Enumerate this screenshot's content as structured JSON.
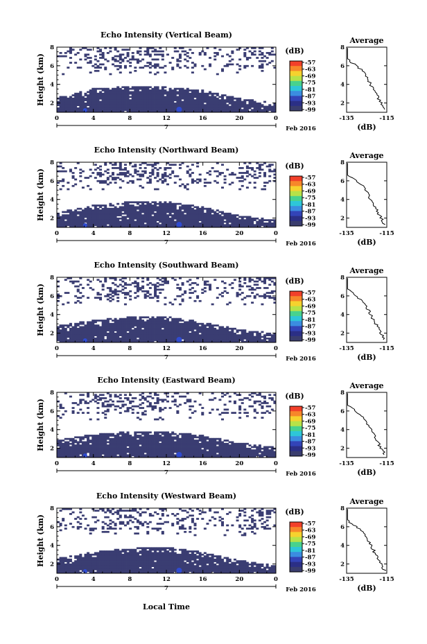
{
  "figure": {
    "xlabel": "Local Time",
    "date_label": "Feb 2016",
    "day_label": "7",
    "colorbar_unit": "(dB)",
    "average_title": "Average",
    "average_xlabel": "(dB)"
  },
  "colorbar": {
    "labels": [
      "-57",
      "-63",
      "-69",
      "-75",
      "-81",
      "-87",
      "-93",
      "-99"
    ],
    "colors": [
      "#f2402a",
      "#f7872a",
      "#f6d22e",
      "#b7e248",
      "#48d28e",
      "#2ec6d8",
      "#3b8de0",
      "#3344b8",
      "#2b2f86",
      "#3a3d6e"
    ]
  },
  "chart_data": [
    {
      "type": "heatmap",
      "title": "Echo Intensity (Vertical Beam)",
      "ylabel": "Height (km)",
      "xlim": [
        0,
        24
      ],
      "ylim": [
        1,
        8
      ],
      "xticks": [
        "0",
        "4",
        "8",
        "12",
        "16",
        "20",
        "0"
      ],
      "yticks": [
        "2",
        "4",
        "6",
        "8"
      ],
      "dense_layer_top_km": [
        2.6,
        3.6,
        3.8,
        3.8,
        3.4,
        2.5,
        2.0
      ],
      "average": {
        "xticks": [
          "-135",
          "-115"
        ],
        "yticks": [
          "2",
          "4",
          "6",
          "8"
        ],
        "xlim": [
          -135,
          -115
        ],
        "ylim": [
          1,
          8
        ]
      }
    },
    {
      "type": "heatmap",
      "title": "Echo Intensity (Northward Beam)",
      "ylabel": "Height (km)",
      "xlim": [
        0,
        24
      ],
      "ylim": [
        1,
        8
      ],
      "xticks": [
        "0",
        "4",
        "8",
        "12",
        "16",
        "20",
        "0"
      ],
      "yticks": [
        "2",
        "4",
        "6",
        "8"
      ],
      "dense_layer_top_km": [
        2.6,
        3.4,
        3.8,
        3.8,
        3.2,
        2.3,
        1.8
      ],
      "average": {
        "xticks": [
          "-135",
          "-115"
        ],
        "yticks": [
          "2",
          "4",
          "6",
          "8"
        ],
        "xlim": [
          -135,
          -115
        ],
        "ylim": [
          1,
          8
        ]
      }
    },
    {
      "type": "heatmap",
      "title": "Echo Intensity (Southward Beam)",
      "ylabel": "Height (km)",
      "xlim": [
        0,
        24
      ],
      "ylim": [
        1,
        8
      ],
      "xticks": [
        "0",
        "4",
        "8",
        "12",
        "16",
        "20",
        "0"
      ],
      "yticks": [
        "2",
        "4",
        "6",
        "8"
      ],
      "dense_layer_top_km": [
        2.8,
        3.4,
        3.8,
        3.8,
        3.2,
        2.4,
        2.0
      ],
      "average": {
        "xticks": [
          "-135",
          "-115"
        ],
        "yticks": [
          "2",
          "4",
          "6",
          "8"
        ],
        "xlim": [
          -135,
          -115
        ],
        "ylim": [
          1,
          8
        ]
      }
    },
    {
      "type": "heatmap",
      "title": "Echo Intensity (Eastward Beam)",
      "ylabel": "Height (km)",
      "xlim": [
        0,
        24
      ],
      "ylim": [
        1,
        8
      ],
      "xticks": [
        "0",
        "4",
        "8",
        "12",
        "16",
        "20",
        "0"
      ],
      "yticks": [
        "2",
        "4",
        "6",
        "8"
      ],
      "dense_layer_top_km": [
        2.9,
        3.5,
        3.8,
        3.8,
        3.4,
        2.6,
        2.1
      ],
      "average": {
        "xticks": [
          "-135",
          "-115"
        ],
        "yticks": [
          "2",
          "4",
          "6",
          "8"
        ],
        "xlim": [
          -135,
          -115
        ],
        "ylim": [
          1,
          8
        ]
      }
    },
    {
      "type": "heatmap",
      "title": "Echo Intensity (Westward Beam)",
      "ylabel": "Height (km)",
      "xlim": [
        0,
        24
      ],
      "ylim": [
        1,
        8
      ],
      "xticks": [
        "0",
        "4",
        "8",
        "12",
        "16",
        "20",
        "0"
      ],
      "yticks": [
        "2",
        "4",
        "6",
        "8"
      ],
      "dense_layer_top_km": [
        2.6,
        3.3,
        3.7,
        3.8,
        3.3,
        2.4,
        1.9
      ],
      "average": {
        "xticks": [
          "-135",
          "-115"
        ],
        "yticks": [
          "2",
          "4",
          "6",
          "8"
        ],
        "xlim": [
          -135,
          -115
        ],
        "ylim": [
          1,
          8
        ]
      }
    }
  ]
}
